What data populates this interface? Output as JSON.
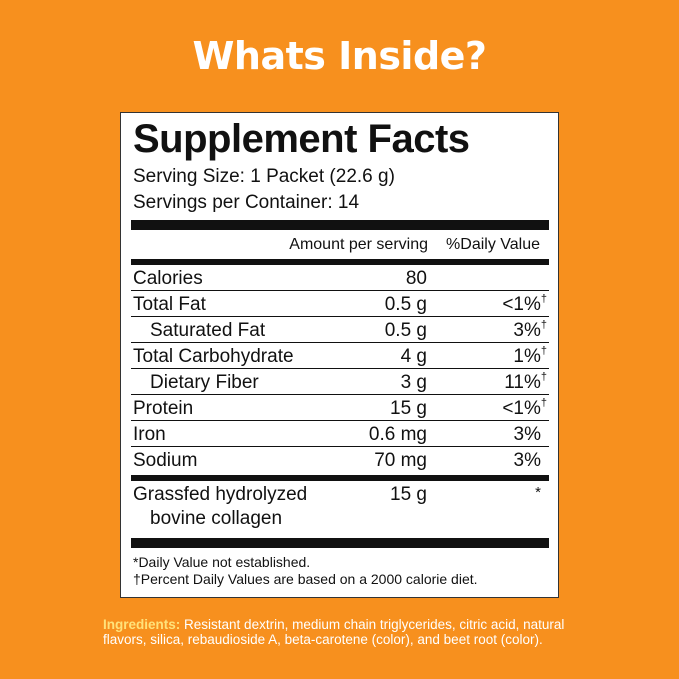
{
  "header": {
    "title": "Whats Inside?"
  },
  "facts": {
    "title": "Supplement Facts",
    "serving_size": "Serving Size: 1 Packet (22.6 g)",
    "servings_per_container": "Servings per Container: 14",
    "column_amount": "Amount per serving",
    "column_dv": "%Daily Value",
    "rows": [
      {
        "name": "Calories",
        "amount": "80",
        "dv": "",
        "note": ""
      },
      {
        "name": "Total Fat",
        "amount": "0.5 g",
        "dv": "<1%",
        "note": "†"
      },
      {
        "name": "Saturated Fat",
        "amount": "0.5 g",
        "dv": "3%",
        "note": "†",
        "indent": true
      },
      {
        "name": "Total Carbohydrate",
        "amount": "4 g",
        "dv": "1%",
        "note": "†"
      },
      {
        "name": "Dietary Fiber",
        "amount": "3 g",
        "dv": "11%",
        "note": "†",
        "indent": true
      },
      {
        "name": "Protein",
        "amount": "15 g",
        "dv": "<1%",
        "note": "†"
      },
      {
        "name": "Iron",
        "amount": "0.6 mg",
        "dv": "3%",
        "note": ""
      },
      {
        "name": "Sodium",
        "amount": "70 mg",
        "dv": "3%",
        "note": ""
      }
    ],
    "other": {
      "name_line1": "Grassfed hydrolyzed",
      "name_line2": "bovine collagen",
      "amount": "15 g",
      "dv": "*"
    },
    "footnotes": [
      "*Daily Value not established.",
      "†Percent Daily Values are based on a 2000 calorie diet."
    ]
  },
  "ingredients": {
    "label": "Ingredients:",
    "text": "Resistant dextrin, medium chain triglycerides, citric acid, natural flavors, silica, rebaudioside A, beta-carotene (color), and beet root (color)."
  }
}
